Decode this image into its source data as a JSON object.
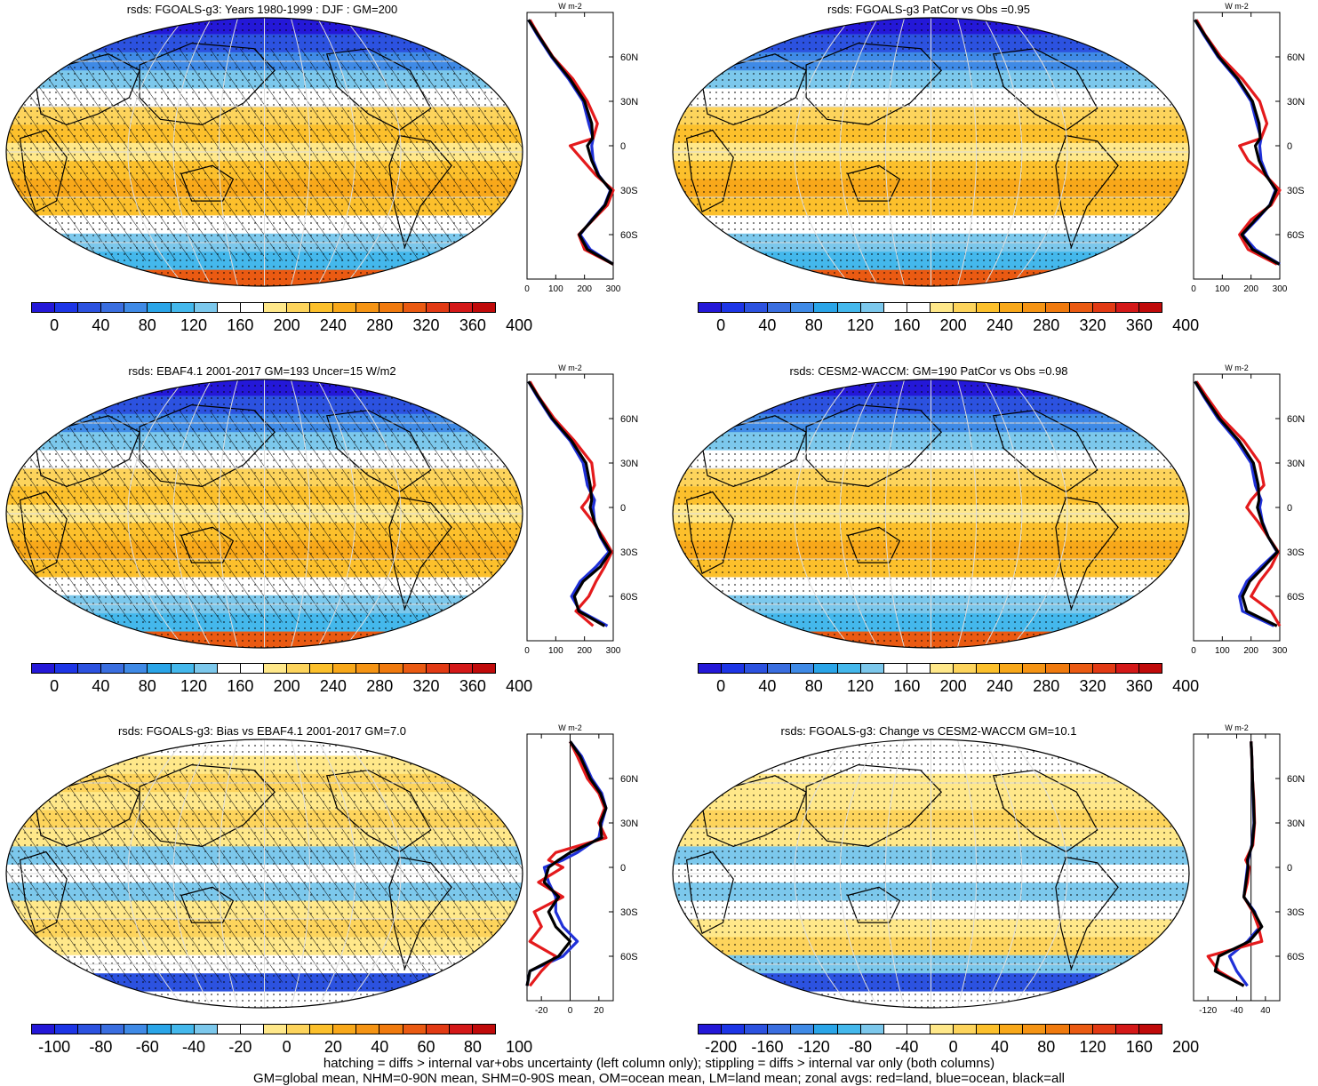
{
  "colors": {
    "abs_scale": [
      "#2418d8",
      "#1d35e6",
      "#2c52e0",
      "#3a6ee0",
      "#3f8ae6",
      "#2aa5e8",
      "#44b8ec",
      "#7cc8ec",
      "#ffffff",
      "#ffffff",
      "#ffe88a",
      "#fdd45c",
      "#fcc02c",
      "#f8a81a",
      "#f59414",
      "#f07a0e",
      "#ea5a12",
      "#e23a14",
      "#d41818",
      "#c00a0a"
    ],
    "diff_scale": [
      "#2418d8",
      "#1d35e6",
      "#2c52e0",
      "#3a6ee0",
      "#3f8ae6",
      "#2aa5e8",
      "#44b8ec",
      "#7cc8ec",
      "#ffffff",
      "#ffffff",
      "#ffe88a",
      "#fdd45c",
      "#fcc02c",
      "#f8a81a",
      "#f59414",
      "#f07a0e",
      "#ea5a12",
      "#e23a14",
      "#d41818",
      "#c00a0a"
    ],
    "land": "#e41a1c",
    "ocean": "#1f30d8",
    "all": "#000000"
  },
  "panels": [
    {
      "id": "model-djf",
      "title": "rsds: FGOALS-g3: Years 1980-1999 : DJF : GM=200",
      "kind": "abs",
      "hatched": true,
      "colorbar_labels": [
        "0",
        "40",
        "80",
        "120",
        "160",
        "200",
        "240",
        "280",
        "320",
        "360",
        "400"
      ],
      "profile": {
        "xlim": [
          0,
          300
        ],
        "xticks": [
          "0",
          "100",
          "200",
          "300"
        ],
        "yticks": [
          "60N",
          "30N",
          "0",
          "30S",
          "60S"
        ],
        "unit": "W m-2"
      },
      "zonal": {
        "lat": [
          85,
          75,
          60,
          45,
          30,
          15,
          5,
          0,
          -10,
          -20,
          -30,
          -40,
          -50,
          -60,
          -70,
          -80
        ],
        "land": [
          10,
          40,
          90,
          160,
          210,
          245,
          230,
          150,
          195,
          240,
          300,
          280,
          230,
          180,
          200,
          300
        ],
        "ocean": [
          5,
          35,
          85,
          145,
          195,
          215,
          230,
          225,
          230,
          250,
          290,
          270,
          225,
          185,
          220,
          300
        ],
        "all": [
          5,
          38,
          88,
          150,
          200,
          225,
          228,
          210,
          225,
          248,
          292,
          272,
          228,
          182,
          210,
          300
        ]
      }
    },
    {
      "id": "patcor-obs-1",
      "title": "rsds: FGOALS-g3 PatCor vs Obs =0.95",
      "kind": "abs",
      "hatched": false,
      "colorbar_labels": [
        "0",
        "40",
        "80",
        "120",
        "160",
        "200",
        "240",
        "280",
        "320",
        "360",
        "400"
      ],
      "profile": {
        "xlim": [
          0,
          300
        ],
        "xticks": [
          "0",
          "100",
          "200",
          "300"
        ],
        "yticks": [
          "60N",
          "30N",
          "0",
          "30S",
          "60S"
        ],
        "unit": "W m-2"
      },
      "zonal": {
        "lat": [
          85,
          75,
          60,
          45,
          30,
          15,
          5,
          0,
          -10,
          -20,
          -30,
          -40,
          -50,
          -60,
          -70,
          -80
        ],
        "land": [
          10,
          40,
          95,
          170,
          230,
          255,
          235,
          160,
          190,
          250,
          300,
          270,
          200,
          160,
          190,
          290
        ],
        "ocean": [
          5,
          35,
          85,
          150,
          200,
          220,
          235,
          230,
          235,
          255,
          285,
          265,
          220,
          170,
          215,
          300
        ],
        "all": [
          5,
          38,
          88,
          155,
          205,
          228,
          232,
          215,
          228,
          252,
          288,
          266,
          215,
          168,
          205,
          298
        ]
      }
    },
    {
      "id": "obs",
      "title": "rsds: EBAF4.1 2001-2017 GM=193 Uncer=15 W/m2",
      "kind": "abs",
      "hatched": true,
      "colorbar_labels": [
        "0",
        "40",
        "80",
        "120",
        "160",
        "200",
        "240",
        "280",
        "320",
        "360",
        "400"
      ],
      "profile": {
        "xlim": [
          0,
          300
        ],
        "xticks": [
          "0",
          "100",
          "200",
          "300"
        ],
        "yticks": [
          "60N",
          "30N",
          "0",
          "30S",
          "60S"
        ],
        "unit": "W m-2"
      },
      "zonal": {
        "lat": [
          85,
          75,
          60,
          45,
          30,
          15,
          5,
          0,
          -10,
          -20,
          -30,
          -40,
          -50,
          -60,
          -70,
          -80
        ],
        "land": [
          10,
          40,
          95,
          165,
          225,
          235,
          210,
          190,
          230,
          265,
          295,
          270,
          240,
          215,
          170,
          230
        ],
        "ocean": [
          5,
          35,
          85,
          150,
          195,
          210,
          235,
          230,
          235,
          255,
          285,
          240,
          185,
          155,
          185,
          280
        ],
        "all": [
          5,
          38,
          88,
          155,
          205,
          220,
          225,
          220,
          235,
          258,
          290,
          255,
          195,
          165,
          180,
          270
        ]
      }
    },
    {
      "id": "cesm2",
      "title": "rsds: CESM2-WACCM: GM=190 PatCor vs Obs =0.98",
      "kind": "abs",
      "hatched": false,
      "colorbar_labels": [
        "0",
        "40",
        "80",
        "120",
        "160",
        "200",
        "240",
        "280",
        "320",
        "360",
        "400"
      ],
      "profile": {
        "xlim": [
          0,
          300
        ],
        "xticks": [
          "0",
          "100",
          "200",
          "300"
        ],
        "yticks": [
          "60N",
          "30N",
          "0",
          "30S",
          "60S"
        ],
        "unit": "W m-2"
      },
      "zonal": {
        "lat": [
          85,
          75,
          60,
          45,
          30,
          15,
          5,
          0,
          -10,
          -20,
          -30,
          -40,
          -50,
          -60,
          -70,
          -80
        ],
        "land": [
          10,
          45,
          100,
          175,
          230,
          245,
          200,
          185,
          225,
          260,
          295,
          270,
          230,
          200,
          270,
          300
        ],
        "ocean": [
          5,
          35,
          85,
          150,
          200,
          215,
          235,
          230,
          240,
          260,
          290,
          235,
          185,
          160,
          170,
          280
        ],
        "all": [
          5,
          38,
          90,
          158,
          208,
          225,
          228,
          222,
          238,
          260,
          292,
          245,
          195,
          170,
          185,
          290
        ]
      }
    },
    {
      "id": "bias",
      "title": "rsds: FGOALS-g3: Bias vs EBAF4.1 2001-2017 GM=7.0",
      "kind": "diff",
      "hatched": true,
      "colorbar_labels": [
        "-100",
        "-80",
        "-60",
        "-40",
        "-20",
        "0",
        "20",
        "40",
        "60",
        "80",
        "100"
      ],
      "profile": {
        "xlim": [
          -30,
          30
        ],
        "xticks": [
          "-20",
          "0",
          "20"
        ],
        "yticks": [
          "60N",
          "30N",
          "0",
          "30S",
          "60S"
        ],
        "unit": "W m-2"
      },
      "zonal": {
        "lat": [
          85,
          75,
          60,
          50,
          40,
          30,
          20,
          10,
          5,
          0,
          -10,
          -20,
          -30,
          -40,
          -50,
          -60,
          -70,
          -80
        ],
        "land": [
          0,
          5,
          12,
          20,
          24,
          20,
          25,
          -10,
          -15,
          -5,
          -22,
          -5,
          -25,
          -20,
          -28,
          -10,
          -20,
          -28
        ],
        "ocean": [
          0,
          8,
          15,
          22,
          25,
          22,
          20,
          5,
          -5,
          -18,
          -15,
          -10,
          -10,
          -5,
          5,
          -5,
          -28,
          -30
        ],
        "all": [
          0,
          7,
          14,
          21,
          25,
          21,
          22,
          0,
          -8,
          -15,
          -18,
          -8,
          -15,
          -10,
          0,
          -8,
          -28,
          -30
        ]
      }
    },
    {
      "id": "change",
      "title": "rsds: FGOALS-g3: Change vs CESM2-WACCM GM=10.1",
      "kind": "diff2",
      "hatched": false,
      "colorbar_labels": [
        "-200",
        "-160",
        "-120",
        "-80",
        "-40",
        "0",
        "40",
        "80",
        "120",
        "160",
        "200"
      ],
      "profile": {
        "xlim": [
          -160,
          80
        ],
        "xticks": [
          "-120",
          "-40",
          "40"
        ],
        "yticks": [
          "60N",
          "30N",
          "0",
          "30S",
          "60S"
        ],
        "unit": "W m-2"
      },
      "zonal": {
        "lat": [
          85,
          75,
          60,
          45,
          30,
          15,
          5,
          0,
          -10,
          -20,
          -30,
          -40,
          -50,
          -60,
          -70,
          -80
        ],
        "land": [
          0,
          2,
          4,
          8,
          10,
          5,
          -15,
          -5,
          -10,
          -20,
          5,
          20,
          30,
          -120,
          -90,
          -20
        ],
        "ocean": [
          0,
          2,
          4,
          6,
          8,
          2,
          -8,
          -10,
          -15,
          -20,
          10,
          25,
          -10,
          -60,
          -40,
          -10
        ],
        "all": [
          0,
          2,
          4,
          7,
          9,
          3,
          -10,
          -8,
          -14,
          -20,
          8,
          30,
          -5,
          -90,
          -100,
          -20
        ]
      }
    }
  ],
  "footer": {
    "line1": "hatching = diffs > internal var+obs uncertainty (left column only); stippling = diffs > internal var only (both columns)",
    "line2": "GM=global mean, NHM=0-90N mean, SHM=0-90S mean, OM=ocean mean, LM=land mean; zonal avgs: red=land, blue=ocean, black=all"
  }
}
